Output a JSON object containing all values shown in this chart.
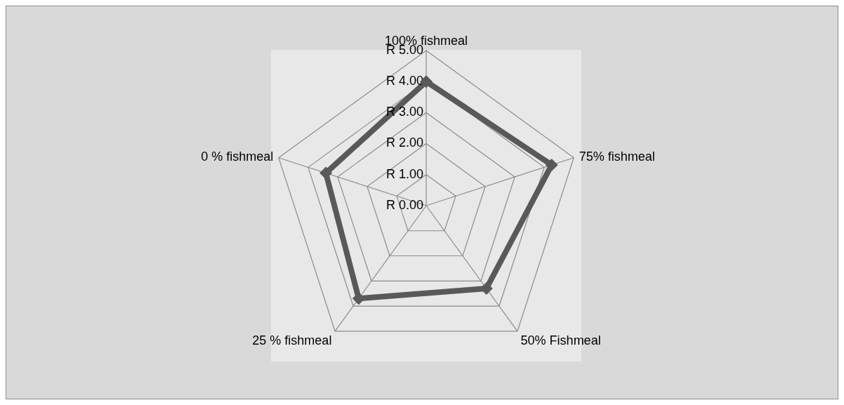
{
  "chart_data": {
    "type": "radar",
    "categories": [
      "100% fishmeal",
      "75% fishmeal",
      "50% Fishmeal",
      "25 % fishmeal",
      "0 % fishmeal"
    ],
    "series": [
      {
        "color": "#595959",
        "values": [
          4.0,
          4.25,
          3.3,
          3.7,
          3.4
        ]
      }
    ],
    "ylim": [
      0,
      5
    ],
    "yticks": [
      {
        "value": 0,
        "label": "R 0.00"
      },
      {
        "value": 1,
        "label": "R 1.00"
      },
      {
        "value": 2,
        "label": "R 2.00"
      },
      {
        "value": 3,
        "label": "R 3.00"
      },
      {
        "value": 4,
        "label": "R 4.00"
      },
      {
        "value": 5,
        "label": "R 5.00"
      }
    ],
    "grid": true,
    "legend": false,
    "marker": "diamond"
  }
}
